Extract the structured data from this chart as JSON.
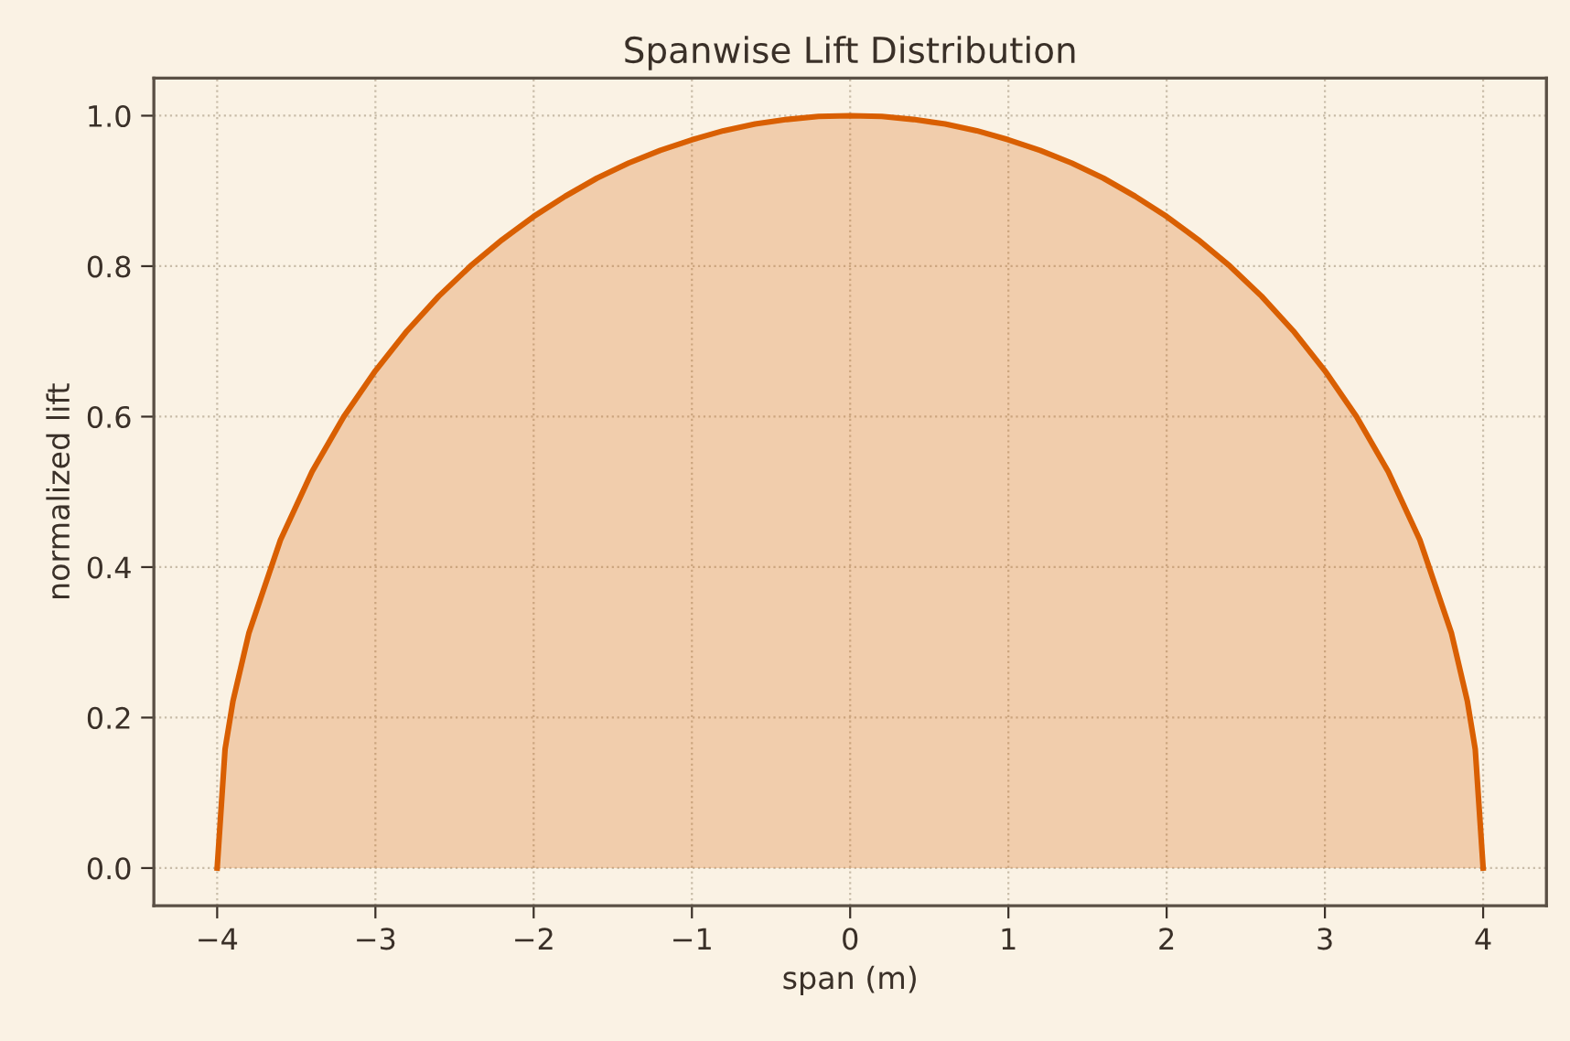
{
  "chart_data": {
    "type": "area",
    "title": "Spanwise Lift Distribution",
    "xlabel": "span (m)",
    "ylabel": "normalized lift",
    "x": [
      -4,
      -3.95,
      -3.9,
      -3.8,
      -3.6,
      -3.4,
      -3.2,
      -3,
      -2.8,
      -2.6,
      -2.4,
      -2.2,
      -2,
      -1.8,
      -1.6,
      -1.4,
      -1.2,
      -1,
      -0.8,
      -0.6,
      -0.4,
      -0.2,
      0,
      0.2,
      0.4,
      0.6,
      0.8,
      1,
      1.2,
      1.4,
      1.6,
      1.8,
      2,
      2.2,
      2.4,
      2.6,
      2.8,
      3,
      3.2,
      3.4,
      3.6,
      3.8,
      3.9,
      3.95,
      4
    ],
    "series": [
      {
        "color": "#d95f02",
        "values": [
          0,
          0.158,
          0.222,
          0.312,
          0.436,
          0.527,
          0.6,
          0.661,
          0.714,
          0.76,
          0.8,
          0.835,
          0.866,
          0.893,
          0.917,
          0.937,
          0.954,
          0.968,
          0.98,
          0.989,
          0.995,
          0.999,
          1,
          0.999,
          0.995,
          0.989,
          0.98,
          0.968,
          0.954,
          0.937,
          0.917,
          0.893,
          0.866,
          0.835,
          0.8,
          0.76,
          0.714,
          0.661,
          0.6,
          0.527,
          0.436,
          0.312,
          0.222,
          0.158,
          0
        ]
      }
    ],
    "xlim": [
      -4.4,
      4.4
    ],
    "ylim": [
      -0.05,
      1.05
    ],
    "xticks": [
      {
        "value": -4,
        "label": "−4"
      },
      {
        "value": -3,
        "label": "−3"
      },
      {
        "value": -2,
        "label": "−2"
      },
      {
        "value": -1,
        "label": "−1"
      },
      0,
      1,
      2,
      3,
      4
    ],
    "yticks": [
      {
        "value": 0,
        "label": "0.0"
      },
      {
        "value": 0.2,
        "label": "0.2"
      },
      {
        "value": 0.4,
        "label": "0.4"
      },
      {
        "value": 0.6,
        "label": "0.6"
      },
      {
        "value": 0.8,
        "label": "0.8"
      },
      {
        "value": 1,
        "label": "1.0"
      }
    ],
    "grid": true,
    "line_style": "solid"
  }
}
